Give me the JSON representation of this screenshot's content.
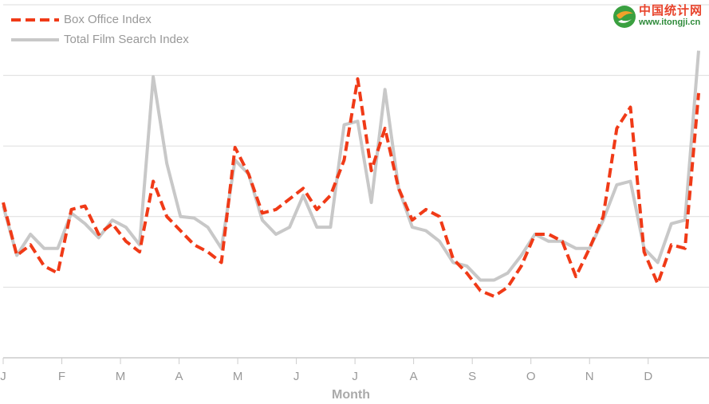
{
  "chart_data": {
    "type": "line",
    "xlabel": "Month",
    "ylabel": "",
    "ylim": [
      0,
      5
    ],
    "grid": true,
    "legend_position": "top-left",
    "month_ticks": [
      "J",
      "F",
      "M",
      "A",
      "M",
      "J",
      "J",
      "A",
      "S",
      "O",
      "N",
      "D"
    ],
    "points_per_month": 4.3,
    "series": [
      {
        "name": "Box Office Index",
        "color": "#f03a17",
        "style": "dashed",
        "values": [
          2.2,
          1.45,
          1.6,
          1.3,
          1.2,
          2.1,
          2.15,
          1.75,
          1.9,
          1.65,
          1.5,
          2.5,
          2.0,
          1.8,
          1.6,
          1.5,
          1.35,
          2.98,
          2.6,
          2.05,
          2.1,
          2.25,
          2.4,
          2.1,
          2.3,
          2.8,
          3.95,
          2.65,
          3.25,
          2.4,
          1.95,
          2.1,
          2.0,
          1.4,
          1.2,
          0.95,
          0.87,
          1.0,
          1.3,
          1.75,
          1.75,
          1.65,
          1.15,
          1.55,
          2.0,
          3.25,
          3.55,
          1.5,
          1.05,
          1.6,
          1.55,
          3.75
        ]
      },
      {
        "name": "Total Film Search Index",
        "color": "#c8c8c8",
        "style": "solid",
        "values": [
          2.15,
          1.45,
          1.75,
          1.55,
          1.55,
          2.05,
          1.9,
          1.7,
          1.95,
          1.85,
          1.6,
          3.98,
          2.75,
          2.0,
          1.98,
          1.85,
          1.55,
          2.8,
          2.6,
          1.95,
          1.75,
          1.85,
          2.3,
          1.85,
          1.85,
          3.3,
          3.35,
          2.2,
          3.8,
          2.4,
          1.85,
          1.8,
          1.65,
          1.35,
          1.3,
          1.1,
          1.1,
          1.2,
          1.45,
          1.75,
          1.65,
          1.65,
          1.55,
          1.55,
          1.95,
          2.45,
          2.5,
          1.55,
          1.35,
          1.9,
          1.95,
          4.35
        ]
      }
    ]
  },
  "watermark": {
    "chinese_name": "中国统计网",
    "url": "www.itongji.cn"
  }
}
